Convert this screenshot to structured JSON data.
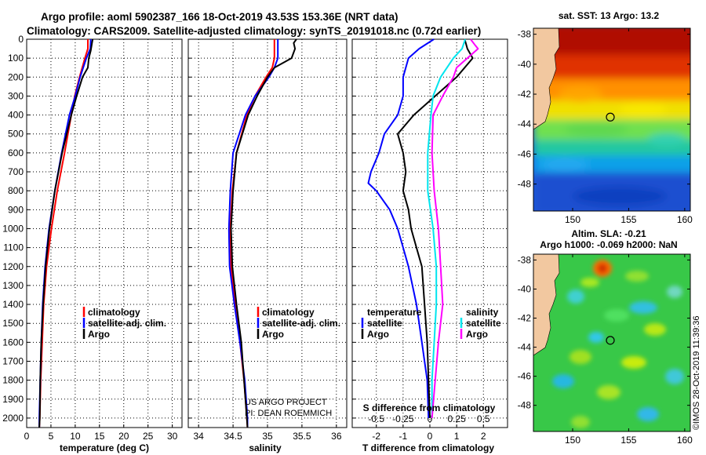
{
  "title_line1": "Argo profile: aoml 5902387_166 18-Oct-2019 43.53S 153.36E (NRT data)",
  "title_line2": "Climatology: CARS2009. Satellite-adjusted climatology: synTS_20191018.nc (0.72d earlier)",
  "credit_line1": "US ARGO PROJECT",
  "credit_line2": "PI: DEAN ROEMMICH",
  "watermark": "©IMOS 28-Oct-2019 11:39:36",
  "colors": {
    "climatology": "#ff0000",
    "satellite": "#0000ff",
    "argo": "#000000",
    "sat_s": "#00e5ee",
    "argo_s": "#ff00ff"
  },
  "chart_data": [
    {
      "type": "line",
      "id": "temperature",
      "xlabel": "temperature (deg C)",
      "ylabel": "",
      "xlim": [
        0,
        32
      ],
      "ylim": [
        2050,
        0
      ],
      "xticks": [
        "0",
        "5",
        "10",
        "15",
        "20",
        "25",
        "30"
      ],
      "yticks": [
        "0",
        "100",
        "200",
        "300",
        "400",
        "500",
        "600",
        "700",
        "800",
        "900",
        "1000",
        "1100",
        "1200",
        "1300",
        "1400",
        "1500",
        "1600",
        "1700",
        "1800",
        "1900",
        "2000"
      ],
      "legend": [
        "climatology",
        "satellite-adj. clim.",
        "Argo"
      ],
      "series": [
        {
          "name": "climatology",
          "depth": [
            0,
            50,
            100,
            200,
            300,
            400,
            600,
            800,
            1000,
            1200,
            1400,
            1600,
            1800,
            2000,
            2050
          ],
          "values": [
            12.6,
            12.6,
            12.0,
            10.9,
            9.9,
            9.2,
            7.8,
            6.3,
            5.1,
            4.1,
            3.5,
            3.2,
            2.9,
            2.7,
            2.6
          ]
        },
        {
          "name": "satellite-adj. clim.",
          "depth": [
            0,
            50,
            100,
            200,
            300,
            400,
            600,
            800,
            1000,
            1200,
            1400,
            1600,
            1800,
            2000,
            2050
          ],
          "values": [
            13.2,
            13.1,
            12.3,
            11.0,
            10.0,
            8.8,
            7.2,
            5.8,
            4.6,
            3.8,
            3.3,
            3.0,
            2.8,
            2.6,
            2.6
          ]
        },
        {
          "name": "Argo",
          "depth": [
            0,
            30,
            60,
            100,
            150,
            200,
            300,
            400,
            600,
            800,
            1000,
            1200,
            1400,
            1600,
            1800,
            2000,
            2050
          ],
          "values": [
            13.6,
            13.4,
            13.2,
            12.8,
            12.6,
            11.5,
            10.3,
            9.2,
            7.3,
            5.8,
            4.7,
            3.9,
            3.4,
            3.0,
            2.8,
            2.7,
            2.6
          ]
        }
      ]
    },
    {
      "type": "line",
      "id": "salinity",
      "xlabel": "salinity",
      "xlim": [
        33.85,
        36.15
      ],
      "ylim": [
        2050,
        0
      ],
      "xticks": [
        "34",
        "34.5",
        "35",
        "35.5",
        "36"
      ],
      "legend": [
        "climatology",
        "satellite-adj. clim.",
        "Argo"
      ],
      "series": [
        {
          "name": "climatology",
          "depth": [
            0,
            100,
            150,
            200,
            300,
            400,
            600,
            800,
            1000,
            1200,
            1400,
            1600,
            1800,
            2000,
            2050
          ],
          "values": [
            35.1,
            35.1,
            35.07,
            34.98,
            34.82,
            34.7,
            34.55,
            34.49,
            34.46,
            34.47,
            34.53,
            34.6,
            34.66,
            34.7,
            34.71
          ]
        },
        {
          "name": "satellite-adj. clim.",
          "depth": [
            0,
            100,
            150,
            200,
            300,
            400,
            600,
            800,
            1000,
            1200,
            1400,
            1600,
            1800,
            2000,
            2050
          ],
          "values": [
            35.15,
            35.15,
            35.1,
            35.02,
            34.82,
            34.68,
            34.5,
            34.46,
            34.44,
            34.45,
            34.52,
            34.6,
            34.67,
            34.71,
            34.71
          ]
        },
        {
          "name": "Argo",
          "depth": [
            0,
            20,
            50,
            100,
            150,
            200,
            300,
            400,
            600,
            800,
            1000,
            1200,
            1400,
            1600,
            1800,
            2000,
            2050
          ],
          "values": [
            35.42,
            35.38,
            35.4,
            35.35,
            35.1,
            35.0,
            34.85,
            34.72,
            34.55,
            34.5,
            34.47,
            34.49,
            34.55,
            34.62,
            34.66,
            34.7,
            34.71
          ]
        }
      ]
    },
    {
      "type": "line",
      "id": "difference",
      "xlabel": "T difference from climatology",
      "xlabel2": "S difference from climatology",
      "xlim": [
        -2.9,
        2.9
      ],
      "ylim": [
        2050,
        0
      ],
      "xticks": [
        "-2",
        "-1",
        "0",
        "1",
        "2"
      ],
      "xticks2": [
        "-0.5",
        "-0.25",
        "0",
        "0.25",
        "0.5"
      ],
      "legend_left": {
        "title": "temperature",
        "items": [
          "satellite",
          "Argo"
        ]
      },
      "legend_right": {
        "title": "salinity",
        "items": [
          "satellite",
          "Argo"
        ]
      },
      "series": [
        {
          "name": "T satellite",
          "depth": [
            0,
            50,
            100,
            200,
            300,
            400,
            500,
            600,
            700,
            760,
            800,
            900,
            1000,
            1100,
            1200,
            1400,
            1600,
            1800,
            2000
          ],
          "values": [
            0.15,
            -0.4,
            -0.8,
            -1.0,
            -1.0,
            -1.2,
            -1.7,
            -1.9,
            -2.2,
            -2.3,
            -2.0,
            -1.5,
            -1.2,
            -1.0,
            -0.8,
            -0.5,
            -0.3,
            -0.1,
            -0.05
          ]
        },
        {
          "name": "T Argo",
          "depth": [
            0,
            50,
            100,
            200,
            300,
            400,
            500,
            600,
            700,
            800,
            900,
            1000,
            1100,
            1200,
            1400,
            1600,
            1800,
            2000
          ],
          "values": [
            1.3,
            1.4,
            1.6,
            1.0,
            0.2,
            -0.6,
            -1.2,
            -1.0,
            -0.9,
            -1.0,
            -0.8,
            -0.7,
            -0.5,
            -0.3,
            -0.2,
            -0.1,
            -0.05,
            0.0
          ]
        },
        {
          "name": "S satellite",
          "depth": [
            0,
            50,
            100,
            200,
            300,
            400,
            600,
            800,
            1000,
            1200,
            1400,
            1600,
            1800,
            2000
          ],
          "values": [
            0.33,
            0.3,
            0.22,
            0.1,
            0.03,
            0.01,
            -0.02,
            -0.02,
            0.03,
            0.06,
            0.06,
            0.04,
            0.02,
            0.02
          ]
        },
        {
          "name": "S Argo",
          "depth": [
            0,
            30,
            50,
            100,
            150,
            200,
            300,
            400,
            600,
            800,
            1000,
            1200,
            1400,
            1600,
            1800,
            2000
          ],
          "values": [
            0.38,
            0.42,
            0.45,
            0.35,
            0.25,
            0.22,
            0.12,
            0.03,
            0.02,
            0.04,
            0.08,
            0.1,
            0.12,
            0.08,
            0.05,
            0.02
          ]
        }
      ]
    },
    {
      "type": "heatmap",
      "id": "sst_map",
      "title": "sat. SST: 13 Argo: 13.2",
      "xticks": [
        "150",
        "155",
        "160"
      ],
      "yticks": [
        "-38",
        "-40",
        "-42",
        "-44",
        "-46",
        "-48"
      ],
      "xlim": [
        146.5,
        160.5
      ],
      "ylim": [
        -49.8,
        -37.6
      ],
      "marker": {
        "lon": 153.36,
        "lat": -43.53
      }
    },
    {
      "type": "heatmap",
      "id": "sla_map",
      "title_line1": "Altim. SLA: -0.21",
      "title_line2": "Argo h1000: -0.069 h2000: NaN",
      "xticks": [
        "150",
        "155",
        "160"
      ],
      "yticks": [
        "-38",
        "-40",
        "-42",
        "-44",
        "-46",
        "-48"
      ],
      "xlim": [
        146.5,
        160.5
      ],
      "ylim": [
        -49.8,
        -37.6
      ],
      "marker": {
        "lon": 153.36,
        "lat": -43.53
      }
    }
  ]
}
